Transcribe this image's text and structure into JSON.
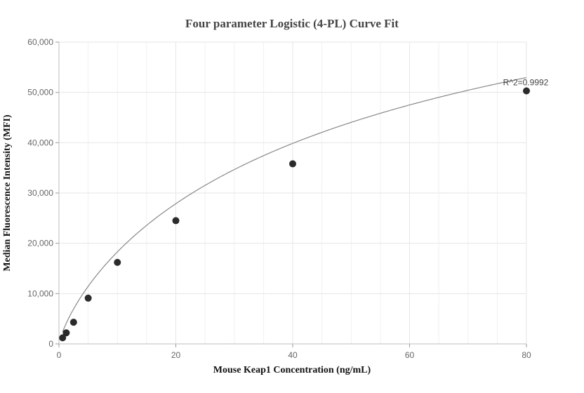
{
  "chart_data": {
    "type": "scatter",
    "title": "Four parameter Logistic (4-PL) Curve Fit",
    "xlabel": "Mouse Keap1 Concentration (ng/mL)",
    "ylabel": "Median Fluorescence Intensity (MFI)",
    "xlim": [
      0,
      80
    ],
    "ylim": [
      0,
      60000
    ],
    "x_ticks": [
      0,
      20,
      40,
      60,
      80
    ],
    "y_ticks": [
      0,
      10000,
      20000,
      30000,
      40000,
      50000,
      60000
    ],
    "x_tick_labels": [
      "0",
      "20",
      "40",
      "60",
      "80"
    ],
    "y_tick_labels": [
      "0",
      "10,000",
      "20,000",
      "30,000",
      "40,000",
      "50,000",
      "60,000"
    ],
    "grid": true,
    "points": [
      {
        "x": 0.625,
        "y": 1200
      },
      {
        "x": 1.25,
        "y": 2200
      },
      {
        "x": 2.5,
        "y": 4300
      },
      {
        "x": 5,
        "y": 9100
      },
      {
        "x": 10,
        "y": 16200
      },
      {
        "x": 20,
        "y": 24500
      },
      {
        "x": 40,
        "y": 35800
      },
      {
        "x": 80,
        "y": 50300
      }
    ],
    "fit_curve": {
      "model": "4PL",
      "a": 0,
      "b": 0.8,
      "c": 60,
      "d": 95000
    },
    "annotation": {
      "text": "R^2=0.9992",
      "x": 80,
      "y": 50300
    },
    "colors": {
      "marker": "#2b2b2b",
      "curve": "#888888",
      "grid": "#e6e6e6",
      "axis": "#cccccc"
    }
  }
}
